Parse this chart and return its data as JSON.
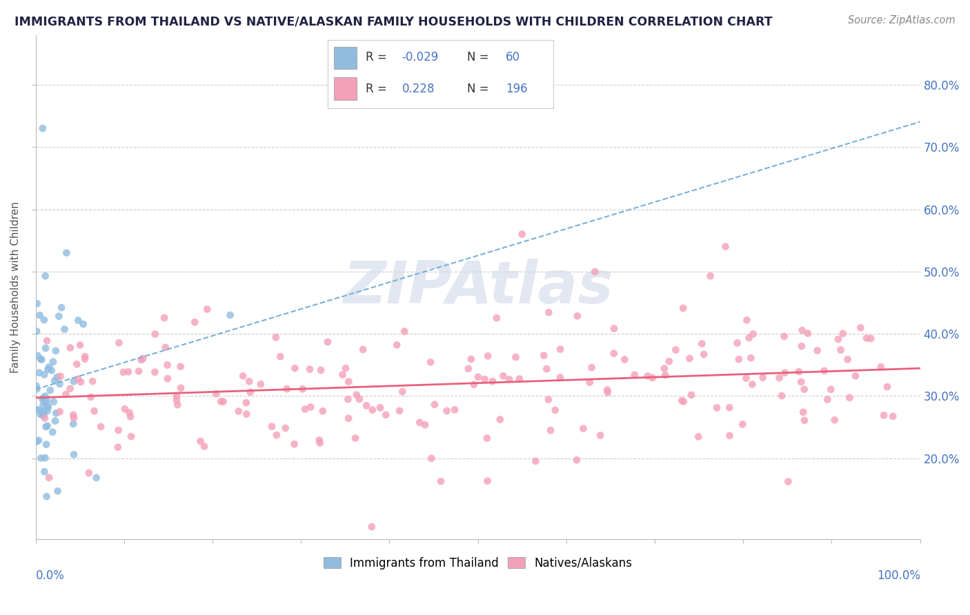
{
  "title": "IMMIGRANTS FROM THAILAND VS NATIVE/ALASKAN FAMILY HOUSEHOLDS WITH CHILDREN CORRELATION CHART",
  "source": "Source: ZipAtlas.com",
  "ylabel": "Family Households with Children",
  "y_ticks": [
    0.2,
    0.3,
    0.4,
    0.5,
    0.6,
    0.7,
    0.8
  ],
  "y_tick_labels": [
    "20.0%",
    "30.0%",
    "40.0%",
    "50.0%",
    "60.0%",
    "70.0%",
    "80.0%"
  ],
  "x_lim": [
    0.0,
    1.0
  ],
  "y_lim": [
    0.07,
    0.88
  ],
  "blue_scatter_color": "#90bce0",
  "pink_scatter_color": "#f4a0b8",
  "blue_line_color": "#7ab0d8",
  "pink_line_color": "#e8607a",
  "grid_color": "#cccccc",
  "tick_label_color": "#4472c4",
  "title_color": "#222244",
  "source_color": "#888888",
  "legend_text_color": "#333333",
  "legend_value_color": "#4472c4",
  "seed": 7,
  "blue_n": 60,
  "pink_n": 196,
  "blue_R": -0.029,
  "pink_R": 0.228,
  "watermark": "ZIPAtlas",
  "watermark_color": "#d0d8e8",
  "watermark_alpha": 0.6
}
